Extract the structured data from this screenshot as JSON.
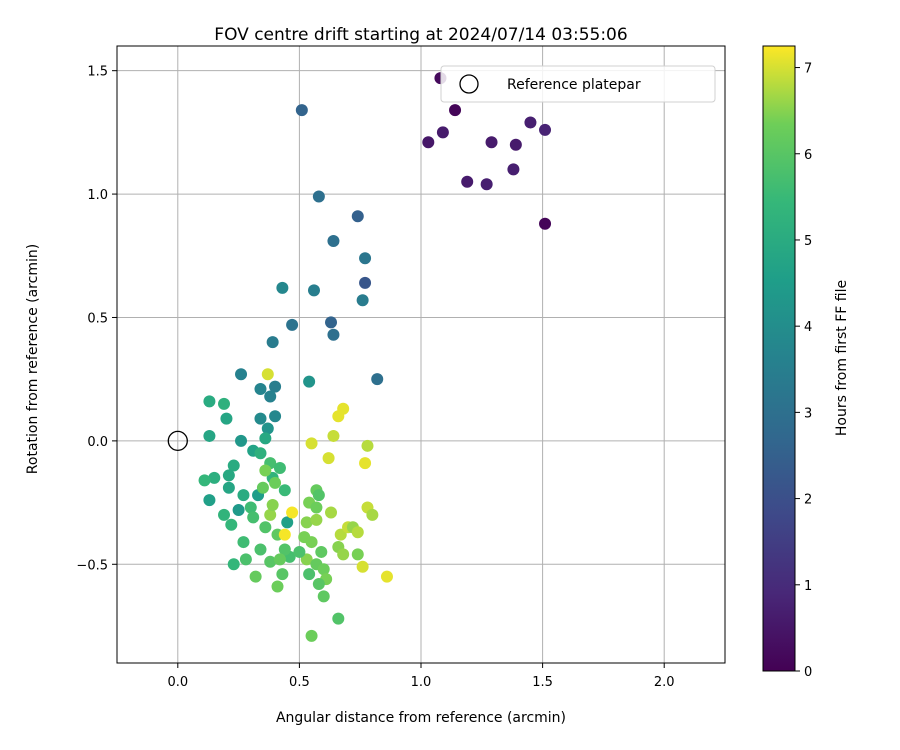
{
  "chart_data": {
    "type": "scatter",
    "title": "FOV centre drift starting at 2024/07/14 03:55:06",
    "xlabel": "Angular distance from reference (arcmin)",
    "ylabel": "Rotation from reference (arcmin)",
    "xlim": [
      -0.25,
      2.25
    ],
    "ylim": [
      -0.9,
      1.6
    ],
    "x_ticks": [
      "0.0",
      "0.5",
      "1.0",
      "1.5",
      "2.0"
    ],
    "y_ticks": [
      "−0.5",
      "0.0",
      "0.5",
      "1.0",
      "1.5"
    ],
    "grid": true,
    "legend": {
      "position": "top-right",
      "entries": [
        "Reference platepar"
      ]
    },
    "reference_point": {
      "x": 0.0,
      "y": 0.0,
      "marker": "open-circle"
    },
    "colorbar": {
      "label": "Hours from first FF file",
      "range": [
        0,
        7.25
      ],
      "ticks": [
        "0",
        "1",
        "2",
        "3",
        "4",
        "5",
        "6",
        "7"
      ],
      "colormap": "viridis"
    },
    "points": [
      {
        "x": 1.08,
        "y": 1.47,
        "t": 0.2
      },
      {
        "x": 1.14,
        "y": 1.34,
        "t": 0.1
      },
      {
        "x": 1.09,
        "y": 1.25,
        "t": 0.6
      },
      {
        "x": 1.03,
        "y": 1.21,
        "t": 0.5
      },
      {
        "x": 1.29,
        "y": 1.21,
        "t": 0.6
      },
      {
        "x": 1.39,
        "y": 1.2,
        "t": 0.6
      },
      {
        "x": 1.45,
        "y": 1.29,
        "t": 0.7
      },
      {
        "x": 1.51,
        "y": 1.26,
        "t": 0.8
      },
      {
        "x": 1.19,
        "y": 1.05,
        "t": 0.6
      },
      {
        "x": 1.27,
        "y": 1.04,
        "t": 0.7
      },
      {
        "x": 1.38,
        "y": 1.1,
        "t": 0.7
      },
      {
        "x": 1.51,
        "y": 0.88,
        "t": 0.1
      },
      {
        "x": 0.51,
        "y": 1.34,
        "t": 2.6
      },
      {
        "x": 0.58,
        "y": 0.99,
        "t": 3.0
      },
      {
        "x": 0.74,
        "y": 0.91,
        "t": 2.5
      },
      {
        "x": 0.64,
        "y": 0.81,
        "t": 3.0
      },
      {
        "x": 0.77,
        "y": 0.74,
        "t": 3.2
      },
      {
        "x": 0.77,
        "y": 0.64,
        "t": 2.2
      },
      {
        "x": 0.76,
        "y": 0.57,
        "t": 3.4
      },
      {
        "x": 0.43,
        "y": 0.62,
        "t": 3.8
      },
      {
        "x": 0.56,
        "y": 0.61,
        "t": 3.5
      },
      {
        "x": 0.47,
        "y": 0.47,
        "t": 3.1
      },
      {
        "x": 0.63,
        "y": 0.48,
        "t": 2.6
      },
      {
        "x": 0.64,
        "y": 0.43,
        "t": 3.0
      },
      {
        "x": 0.39,
        "y": 0.4,
        "t": 3.4
      },
      {
        "x": 0.26,
        "y": 0.27,
        "t": 3.6
      },
      {
        "x": 0.54,
        "y": 0.24,
        "t": 4.2
      },
      {
        "x": 0.82,
        "y": 0.25,
        "t": 3.0
      },
      {
        "x": 0.34,
        "y": 0.21,
        "t": 3.7
      },
      {
        "x": 0.4,
        "y": 0.22,
        "t": 3.5
      },
      {
        "x": 0.38,
        "y": 0.18,
        "t": 3.6
      },
      {
        "x": 0.4,
        "y": 0.1,
        "t": 3.8
      },
      {
        "x": 0.34,
        "y": 0.09,
        "t": 3.9
      },
      {
        "x": 0.37,
        "y": 0.05,
        "t": 4.2
      },
      {
        "x": 0.37,
        "y": 0.27,
        "t": 7.0
      },
      {
        "x": 0.13,
        "y": 0.16,
        "t": 5.0
      },
      {
        "x": 0.19,
        "y": 0.15,
        "t": 5.2
      },
      {
        "x": 0.2,
        "y": 0.09,
        "t": 4.8
      },
      {
        "x": 0.13,
        "y": 0.02,
        "t": 4.8
      },
      {
        "x": 0.26,
        "y": 0.0,
        "t": 4.3
      },
      {
        "x": 0.31,
        "y": -0.04,
        "t": 4.7
      },
      {
        "x": 0.36,
        "y": 0.01,
        "t": 4.9
      },
      {
        "x": 0.34,
        "y": -0.05,
        "t": 5.2
      },
      {
        "x": 0.38,
        "y": -0.09,
        "t": 5.7
      },
      {
        "x": 0.42,
        "y": -0.11,
        "t": 5.6
      },
      {
        "x": 0.23,
        "y": -0.1,
        "t": 5.0
      },
      {
        "x": 0.21,
        "y": -0.14,
        "t": 4.9
      },
      {
        "x": 0.15,
        "y": -0.15,
        "t": 5.1
      },
      {
        "x": 0.11,
        "y": -0.16,
        "t": 5.4
      },
      {
        "x": 0.21,
        "y": -0.19,
        "t": 4.8
      },
      {
        "x": 0.27,
        "y": -0.22,
        "t": 5.0
      },
      {
        "x": 0.33,
        "y": -0.22,
        "t": 4.5
      },
      {
        "x": 0.39,
        "y": -0.15,
        "t": 5.3
      },
      {
        "x": 0.44,
        "y": -0.2,
        "t": 5.5
      },
      {
        "x": 0.13,
        "y": -0.24,
        "t": 4.6
      },
      {
        "x": 0.25,
        "y": -0.28,
        "t": 4.4
      },
      {
        "x": 0.3,
        "y": -0.27,
        "t": 5.6
      },
      {
        "x": 0.19,
        "y": -0.3,
        "t": 5.3
      },
      {
        "x": 0.22,
        "y": -0.34,
        "t": 5.4
      },
      {
        "x": 0.31,
        "y": -0.31,
        "t": 5.7
      },
      {
        "x": 0.36,
        "y": -0.35,
        "t": 5.9
      },
      {
        "x": 0.41,
        "y": -0.38,
        "t": 6.1
      },
      {
        "x": 0.27,
        "y": -0.41,
        "t": 5.6
      },
      {
        "x": 0.34,
        "y": -0.44,
        "t": 5.8
      },
      {
        "x": 0.38,
        "y": -0.49,
        "t": 6.0
      },
      {
        "x": 0.46,
        "y": -0.47,
        "t": 5.7
      },
      {
        "x": 0.45,
        "y": -0.33,
        "t": 4.6
      },
      {
        "x": 0.44,
        "y": -0.44,
        "t": 5.9
      },
      {
        "x": 0.28,
        "y": -0.48,
        "t": 5.8
      },
      {
        "x": 0.23,
        "y": -0.5,
        "t": 5.4
      },
      {
        "x": 0.32,
        "y": -0.55,
        "t": 6.2
      },
      {
        "x": 0.43,
        "y": -0.54,
        "t": 6.0
      },
      {
        "x": 0.41,
        "y": -0.59,
        "t": 6.3
      },
      {
        "x": 0.42,
        "y": -0.48,
        "t": 6.2
      },
      {
        "x": 0.52,
        "y": -0.39,
        "t": 6.4
      },
      {
        "x": 0.55,
        "y": -0.41,
        "t": 6.4
      },
      {
        "x": 0.59,
        "y": -0.45,
        "t": 6.1
      },
      {
        "x": 0.53,
        "y": -0.48,
        "t": 6.5
      },
      {
        "x": 0.54,
        "y": -0.54,
        "t": 5.8
      },
      {
        "x": 0.57,
        "y": -0.5,
        "t": 6.2
      },
      {
        "x": 0.6,
        "y": -0.52,
        "t": 6.3
      },
      {
        "x": 0.61,
        "y": -0.56,
        "t": 6.4
      },
      {
        "x": 0.58,
        "y": -0.58,
        "t": 6.0
      },
      {
        "x": 0.6,
        "y": -0.63,
        "t": 6.1
      },
      {
        "x": 0.66,
        "y": -0.72,
        "t": 5.9
      },
      {
        "x": 0.55,
        "y": -0.79,
        "t": 6.3
      },
      {
        "x": 0.57,
        "y": -0.2,
        "t": 6.2
      },
      {
        "x": 0.58,
        "y": -0.22,
        "t": 5.9
      },
      {
        "x": 0.54,
        "y": -0.25,
        "t": 6.4
      },
      {
        "x": 0.53,
        "y": -0.33,
        "t": 6.5
      },
      {
        "x": 0.57,
        "y": -0.27,
        "t": 6.3
      },
      {
        "x": 0.57,
        "y": -0.32,
        "t": 6.6
      },
      {
        "x": 0.63,
        "y": -0.29,
        "t": 6.7
      },
      {
        "x": 0.67,
        "y": -0.38,
        "t": 6.8
      },
      {
        "x": 0.7,
        "y": -0.35,
        "t": 6.9
      },
      {
        "x": 0.72,
        "y": -0.35,
        "t": 6.6
      },
      {
        "x": 0.74,
        "y": -0.37,
        "t": 6.8
      },
      {
        "x": 0.78,
        "y": -0.27,
        "t": 6.9
      },
      {
        "x": 0.8,
        "y": -0.3,
        "t": 6.7
      },
      {
        "x": 0.66,
        "y": -0.43,
        "t": 6.5
      },
      {
        "x": 0.68,
        "y": -0.46,
        "t": 6.6
      },
      {
        "x": 0.74,
        "y": -0.46,
        "t": 6.4
      },
      {
        "x": 0.76,
        "y": -0.51,
        "t": 7.0
      },
      {
        "x": 0.86,
        "y": -0.55,
        "t": 7.1
      },
      {
        "x": 0.55,
        "y": -0.01,
        "t": 7.0
      },
      {
        "x": 0.62,
        "y": -0.07,
        "t": 7.0
      },
      {
        "x": 0.64,
        "y": 0.02,
        "t": 6.9
      },
      {
        "x": 0.66,
        "y": 0.1,
        "t": 7.1
      },
      {
        "x": 0.68,
        "y": 0.13,
        "t": 7.1
      },
      {
        "x": 0.78,
        "y": -0.02,
        "t": 6.8
      },
      {
        "x": 0.77,
        "y": -0.09,
        "t": 7.1
      },
      {
        "x": 0.47,
        "y": -0.29,
        "t": 7.2
      },
      {
        "x": 0.44,
        "y": -0.38,
        "t": 7.2
      },
      {
        "x": 0.38,
        "y": -0.3,
        "t": 6.6
      },
      {
        "x": 0.36,
        "y": -0.12,
        "t": 6.4
      },
      {
        "x": 0.4,
        "y": -0.17,
        "t": 6.3
      },
      {
        "x": 0.39,
        "y": -0.26,
        "t": 6.5
      },
      {
        "x": 0.35,
        "y": -0.19,
        "t": 6.2
      },
      {
        "x": 0.5,
        "y": -0.45,
        "t": 5.8
      }
    ]
  }
}
